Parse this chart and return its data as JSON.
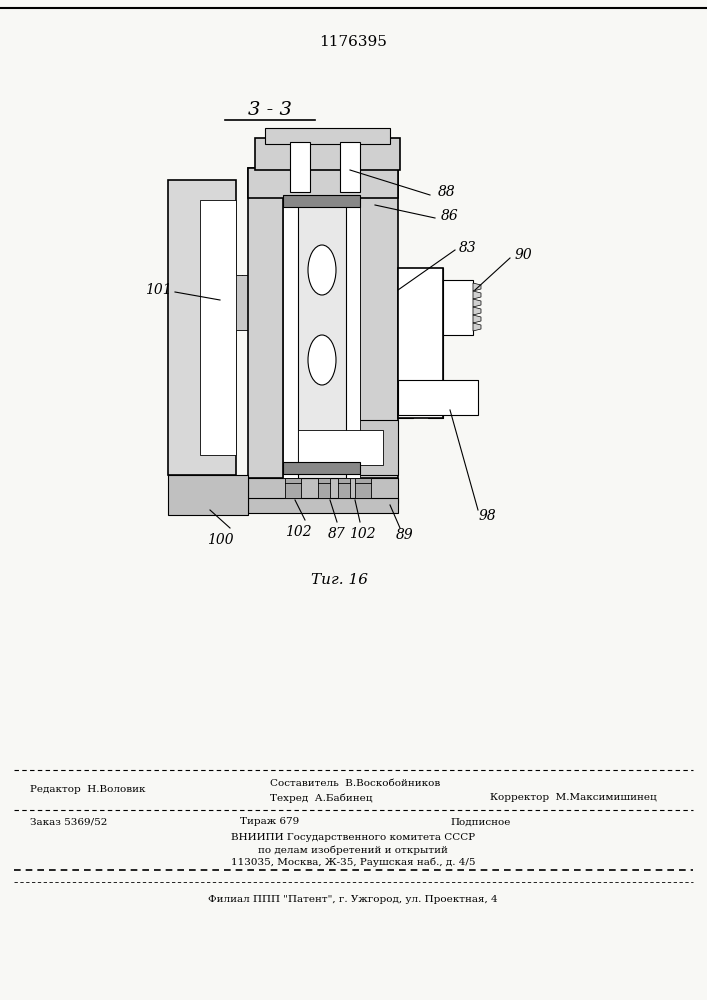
{
  "patent_number": "1176395",
  "section_label": "3 - 3",
  "figure_label": "Τиг. 16",
  "background_color": "#f8f8f5",
  "editor_line": "Редактор  Н.Воловик",
  "composer_line": "Составитель  В.Воскобойников",
  "techred_line": "Техред  А.Бабинец",
  "corrector_line": "Корректор  М.Максимишинец",
  "order_text": "Заказ 5369/52",
  "tirazh_text": "Тираж 679",
  "podpisnoe_text": "Подписное",
  "vniip_line": "ВНИИПИ Государственного комитета СССР",
  "affairs_line": "по делам изобретений и открытий",
  "address_line": "113035, Москва, Ж-35, Раушская наб., д. 4/5",
  "filial_line": "Филиал ППП \"Патент\", г. Ужгород, ул. Проектная, 4",
  "hatch_color": "#000000",
  "line_color": "#000000",
  "fill_light": "#e8e8e8",
  "fill_white": "#ffffff"
}
